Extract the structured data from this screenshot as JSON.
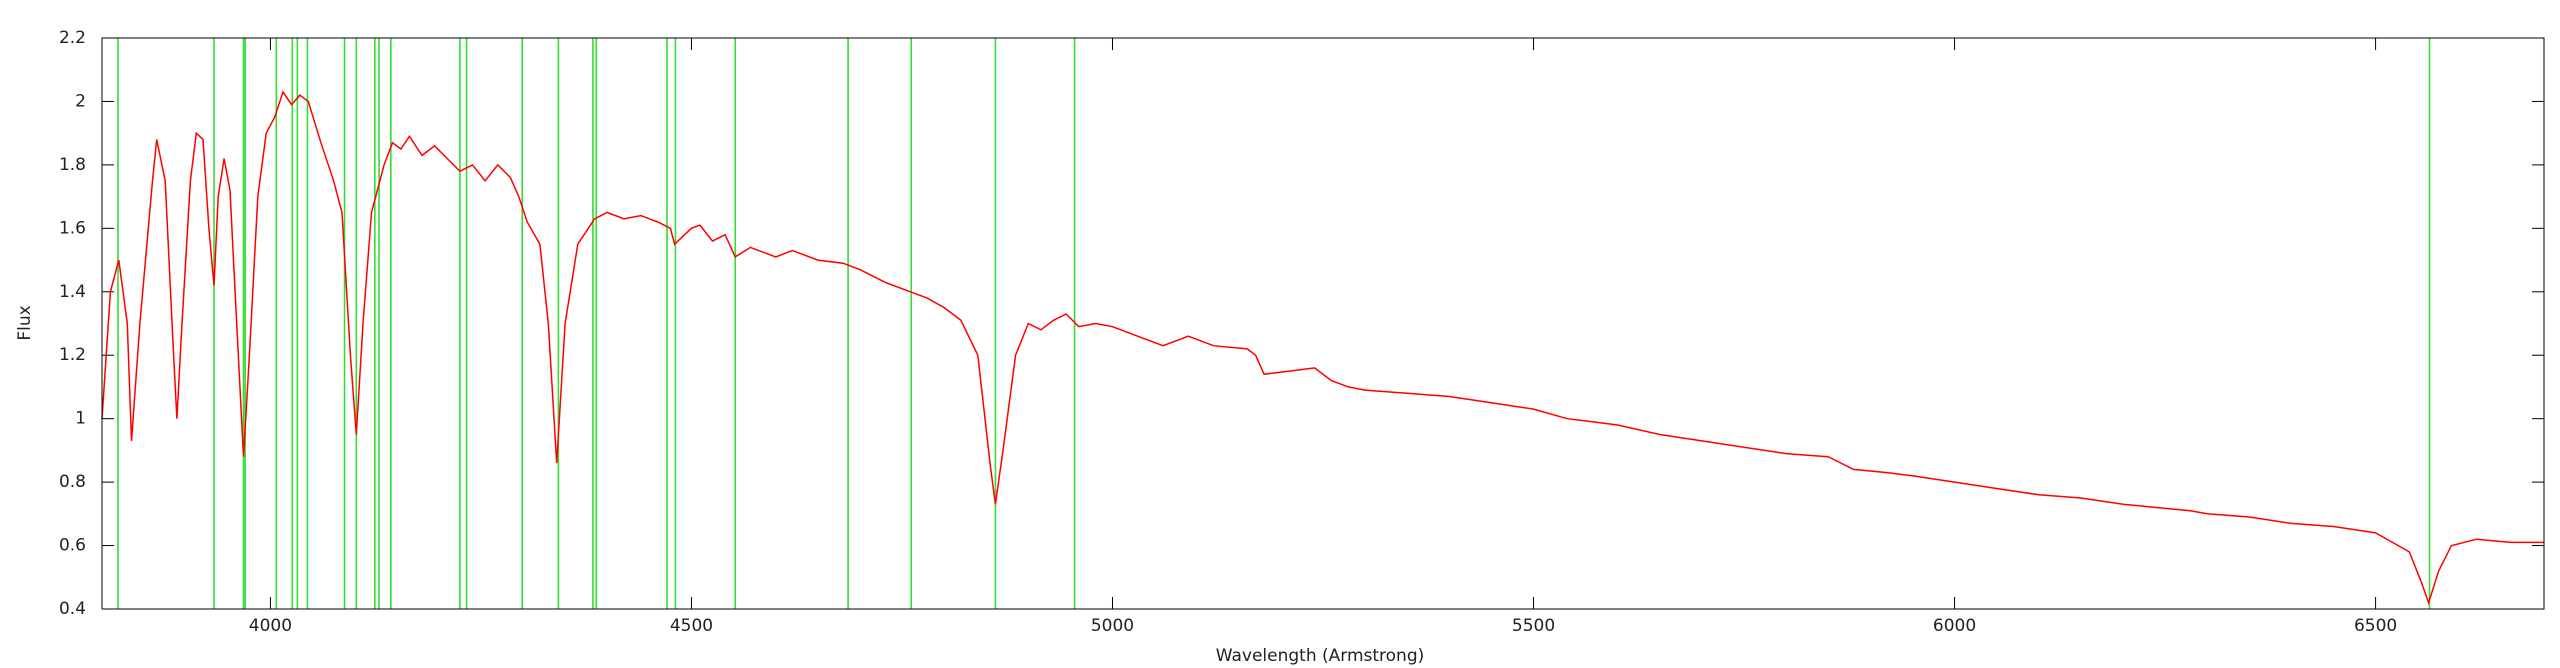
{
  "chart_data": {
    "type": "line",
    "xlabel": "Wavelength (Armstrong)",
    "ylabel": "Flux",
    "xlim": [
      3800,
      6700
    ],
    "xticks": [
      4000,
      4500,
      5000,
      5500,
      6000,
      6500
    ],
    "ylim": [
      0.4,
      2.2
    ],
    "yticks": [
      0.4,
      0.6,
      0.8,
      1,
      1.2,
      1.4,
      1.6,
      1.8,
      2,
      2.2
    ],
    "markers": {
      "color": "#33dd33",
      "x": [
        3819,
        3933,
        3968,
        3970,
        4007,
        4026,
        4032,
        4044,
        4088,
        4102,
        4124,
        4129,
        4143,
        4225,
        4233,
        4299,
        4342,
        4383,
        4387,
        4471,
        4481,
        4552,
        4686,
        4761,
        4861,
        4955,
        6564
      ]
    },
    "series": [
      {
        "color": "#ff0000",
        "x": [
          3800,
          3810,
          3820,
          3830,
          3835,
          3845,
          3860,
          3865,
          3875,
          3885,
          3889,
          3895,
          3905,
          3912,
          3920,
          3927,
          3933,
          3938,
          3945,
          3952,
          3960,
          3968,
          3975,
          3985,
          3995,
          4005,
          4015,
          4025,
          4035,
          4045,
          4060,
          4075,
          4085,
          4095,
          4102,
          4110,
          4120,
          4135,
          4145,
          4155,
          4165,
          4180,
          4195,
          4210,
          4225,
          4240,
          4255,
          4270,
          4285,
          4295,
          4305,
          4320,
          4330,
          4340,
          4350,
          4365,
          4385,
          4400,
          4420,
          4440,
          4460,
          4475,
          4480,
          4500,
          4510,
          4525,
          4540,
          4552,
          4570,
          4600,
          4620,
          4650,
          4680,
          4700,
          4730,
          4760,
          4780,
          4800,
          4820,
          4840,
          4855,
          4861,
          4870,
          4885,
          4900,
          4915,
          4930,
          4945,
          4960,
          4980,
          5000,
          5030,
          5060,
          5090,
          5120,
          5160,
          5170,
          5180,
          5210,
          5240,
          5260,
          5280,
          5300,
          5350,
          5400,
          5450,
          5500,
          5540,
          5570,
          5600,
          5650,
          5700,
          5750,
          5800,
          5850,
          5880,
          5920,
          5950,
          6000,
          6050,
          6100,
          6150,
          6200,
          6280,
          6300,
          6350,
          6400,
          6450,
          6500,
          6540,
          6555,
          6563,
          6575,
          6590,
          6620,
          6660,
          6700
        ],
        "values": [
          1.0,
          1.4,
          1.5,
          1.3,
          0.93,
          1.3,
          1.75,
          1.88,
          1.75,
          1.2,
          1.0,
          1.3,
          1.75,
          1.9,
          1.88,
          1.6,
          1.42,
          1.7,
          1.82,
          1.72,
          1.3,
          0.88,
          1.2,
          1.7,
          1.9,
          1.95,
          2.03,
          1.99,
          2.02,
          2.0,
          1.87,
          1.75,
          1.65,
          1.2,
          0.95,
          1.3,
          1.65,
          1.8,
          1.87,
          1.85,
          1.89,
          1.83,
          1.86,
          1.82,
          1.78,
          1.8,
          1.75,
          1.8,
          1.76,
          1.7,
          1.62,
          1.55,
          1.3,
          0.86,
          1.3,
          1.55,
          1.63,
          1.65,
          1.63,
          1.64,
          1.62,
          1.6,
          1.55,
          1.6,
          1.61,
          1.56,
          1.58,
          1.51,
          1.54,
          1.51,
          1.53,
          1.5,
          1.49,
          1.47,
          1.43,
          1.4,
          1.38,
          1.35,
          1.31,
          1.2,
          0.85,
          0.73,
          0.9,
          1.2,
          1.3,
          1.28,
          1.31,
          1.33,
          1.29,
          1.3,
          1.29,
          1.26,
          1.23,
          1.26,
          1.23,
          1.22,
          1.2,
          1.14,
          1.15,
          1.16,
          1.12,
          1.1,
          1.09,
          1.08,
          1.07,
          1.05,
          1.03,
          1.0,
          0.99,
          0.98,
          0.95,
          0.93,
          0.91,
          0.89,
          0.88,
          0.84,
          0.83,
          0.82,
          0.8,
          0.78,
          0.76,
          0.75,
          0.73,
          0.71,
          0.7,
          0.69,
          0.67,
          0.66,
          0.64,
          0.58,
          0.48,
          0.42,
          0.52,
          0.6,
          0.62,
          0.61,
          0.61
        ]
      }
    ]
  }
}
